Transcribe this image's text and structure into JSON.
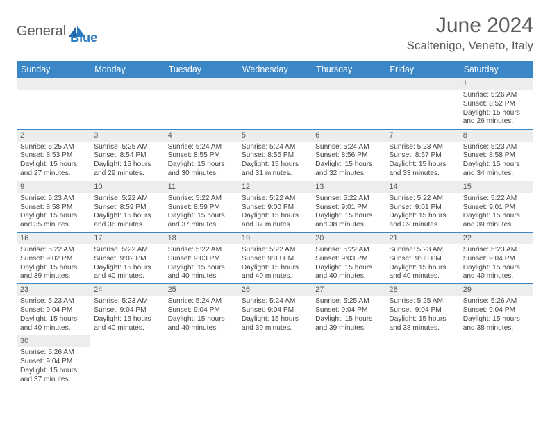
{
  "logo": {
    "part1": "General",
    "part2": "Blue"
  },
  "title": "June 2024",
  "location": "Scaltenigo, Veneto, Italy",
  "day_headers": [
    "Sunday",
    "Monday",
    "Tuesday",
    "Wednesday",
    "Thursday",
    "Friday",
    "Saturday"
  ],
  "colors": {
    "header_bg": "#3b87c8",
    "header_text": "#ffffff",
    "daynum_bg": "#eceeee",
    "cell_border": "#3b87c8",
    "logo_gray": "#5a5a5a",
    "logo_blue": "#2b7bbf"
  },
  "weeks": [
    [
      null,
      null,
      null,
      null,
      null,
      null,
      {
        "n": "1",
        "sunrise": "Sunrise: 5:26 AM",
        "sunset": "Sunset: 8:52 PM",
        "daylight": "Daylight: 15 hours and 26 minutes."
      }
    ],
    [
      {
        "n": "2",
        "sunrise": "Sunrise: 5:25 AM",
        "sunset": "Sunset: 8:53 PM",
        "daylight": "Daylight: 15 hours and 27 minutes."
      },
      {
        "n": "3",
        "sunrise": "Sunrise: 5:25 AM",
        "sunset": "Sunset: 8:54 PM",
        "daylight": "Daylight: 15 hours and 29 minutes."
      },
      {
        "n": "4",
        "sunrise": "Sunrise: 5:24 AM",
        "sunset": "Sunset: 8:55 PM",
        "daylight": "Daylight: 15 hours and 30 minutes."
      },
      {
        "n": "5",
        "sunrise": "Sunrise: 5:24 AM",
        "sunset": "Sunset: 8:55 PM",
        "daylight": "Daylight: 15 hours and 31 minutes."
      },
      {
        "n": "6",
        "sunrise": "Sunrise: 5:24 AM",
        "sunset": "Sunset: 8:56 PM",
        "daylight": "Daylight: 15 hours and 32 minutes."
      },
      {
        "n": "7",
        "sunrise": "Sunrise: 5:23 AM",
        "sunset": "Sunset: 8:57 PM",
        "daylight": "Daylight: 15 hours and 33 minutes."
      },
      {
        "n": "8",
        "sunrise": "Sunrise: 5:23 AM",
        "sunset": "Sunset: 8:58 PM",
        "daylight": "Daylight: 15 hours and 34 minutes."
      }
    ],
    [
      {
        "n": "9",
        "sunrise": "Sunrise: 5:23 AM",
        "sunset": "Sunset: 8:58 PM",
        "daylight": "Daylight: 15 hours and 35 minutes."
      },
      {
        "n": "10",
        "sunrise": "Sunrise: 5:22 AM",
        "sunset": "Sunset: 8:59 PM",
        "daylight": "Daylight: 15 hours and 36 minutes."
      },
      {
        "n": "11",
        "sunrise": "Sunrise: 5:22 AM",
        "sunset": "Sunset: 8:59 PM",
        "daylight": "Daylight: 15 hours and 37 minutes."
      },
      {
        "n": "12",
        "sunrise": "Sunrise: 5:22 AM",
        "sunset": "Sunset: 9:00 PM",
        "daylight": "Daylight: 15 hours and 37 minutes."
      },
      {
        "n": "13",
        "sunrise": "Sunrise: 5:22 AM",
        "sunset": "Sunset: 9:01 PM",
        "daylight": "Daylight: 15 hours and 38 minutes."
      },
      {
        "n": "14",
        "sunrise": "Sunrise: 5:22 AM",
        "sunset": "Sunset: 9:01 PM",
        "daylight": "Daylight: 15 hours and 39 minutes."
      },
      {
        "n": "15",
        "sunrise": "Sunrise: 5:22 AM",
        "sunset": "Sunset: 9:01 PM",
        "daylight": "Daylight: 15 hours and 39 minutes."
      }
    ],
    [
      {
        "n": "16",
        "sunrise": "Sunrise: 5:22 AM",
        "sunset": "Sunset: 9:02 PM",
        "daylight": "Daylight: 15 hours and 39 minutes."
      },
      {
        "n": "17",
        "sunrise": "Sunrise: 5:22 AM",
        "sunset": "Sunset: 9:02 PM",
        "daylight": "Daylight: 15 hours and 40 minutes."
      },
      {
        "n": "18",
        "sunrise": "Sunrise: 5:22 AM",
        "sunset": "Sunset: 9:03 PM",
        "daylight": "Daylight: 15 hours and 40 minutes."
      },
      {
        "n": "19",
        "sunrise": "Sunrise: 5:22 AM",
        "sunset": "Sunset: 9:03 PM",
        "daylight": "Daylight: 15 hours and 40 minutes."
      },
      {
        "n": "20",
        "sunrise": "Sunrise: 5:22 AM",
        "sunset": "Sunset: 9:03 PM",
        "daylight": "Daylight: 15 hours and 40 minutes."
      },
      {
        "n": "21",
        "sunrise": "Sunrise: 5:23 AM",
        "sunset": "Sunset: 9:03 PM",
        "daylight": "Daylight: 15 hours and 40 minutes."
      },
      {
        "n": "22",
        "sunrise": "Sunrise: 5:23 AM",
        "sunset": "Sunset: 9:04 PM",
        "daylight": "Daylight: 15 hours and 40 minutes."
      }
    ],
    [
      {
        "n": "23",
        "sunrise": "Sunrise: 5:23 AM",
        "sunset": "Sunset: 9:04 PM",
        "daylight": "Daylight: 15 hours and 40 minutes."
      },
      {
        "n": "24",
        "sunrise": "Sunrise: 5:23 AM",
        "sunset": "Sunset: 9:04 PM",
        "daylight": "Daylight: 15 hours and 40 minutes."
      },
      {
        "n": "25",
        "sunrise": "Sunrise: 5:24 AM",
        "sunset": "Sunset: 9:04 PM",
        "daylight": "Daylight: 15 hours and 40 minutes."
      },
      {
        "n": "26",
        "sunrise": "Sunrise: 5:24 AM",
        "sunset": "Sunset: 9:04 PM",
        "daylight": "Daylight: 15 hours and 39 minutes."
      },
      {
        "n": "27",
        "sunrise": "Sunrise: 5:25 AM",
        "sunset": "Sunset: 9:04 PM",
        "daylight": "Daylight: 15 hours and 39 minutes."
      },
      {
        "n": "28",
        "sunrise": "Sunrise: 5:25 AM",
        "sunset": "Sunset: 9:04 PM",
        "daylight": "Daylight: 15 hours and 38 minutes."
      },
      {
        "n": "29",
        "sunrise": "Sunrise: 5:26 AM",
        "sunset": "Sunset: 9:04 PM",
        "daylight": "Daylight: 15 hours and 38 minutes."
      }
    ],
    [
      {
        "n": "30",
        "sunrise": "Sunrise: 5:26 AM",
        "sunset": "Sunset: 9:04 PM",
        "daylight": "Daylight: 15 hours and 37 minutes."
      },
      null,
      null,
      null,
      null,
      null,
      null
    ]
  ]
}
